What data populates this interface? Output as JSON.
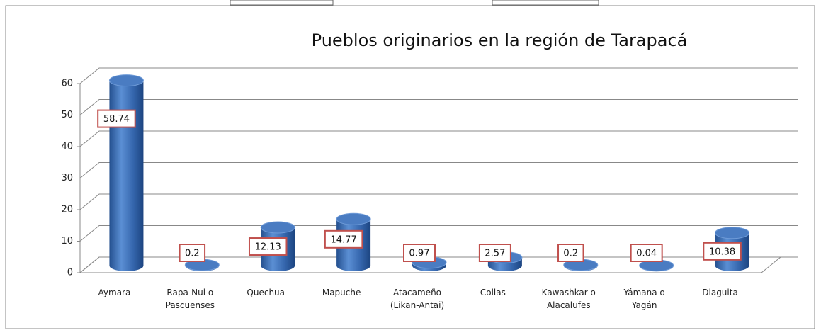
{
  "chart_data": {
    "type": "bar3d",
    "title": "Pueblos originarios en la región de Tarapacá",
    "categories": [
      "Aymara",
      "Rapa-Nui o Pascuenses",
      "Quechua",
      "Mapuche",
      "Atacameño (Likan-Antai)",
      "Collas",
      "Kawashkar o Alacalufes",
      "Yámana o Yagán",
      "Diaguita"
    ],
    "values": [
      58.74,
      0.2,
      12.13,
      14.77,
      0.97,
      2.57,
      0.2,
      0.04,
      10.38
    ],
    "color": "#4f81bd",
    "ylim": [
      0,
      60
    ],
    "yticks": [
      0,
      10,
      20,
      30,
      40,
      50,
      60
    ],
    "grid": true
  }
}
